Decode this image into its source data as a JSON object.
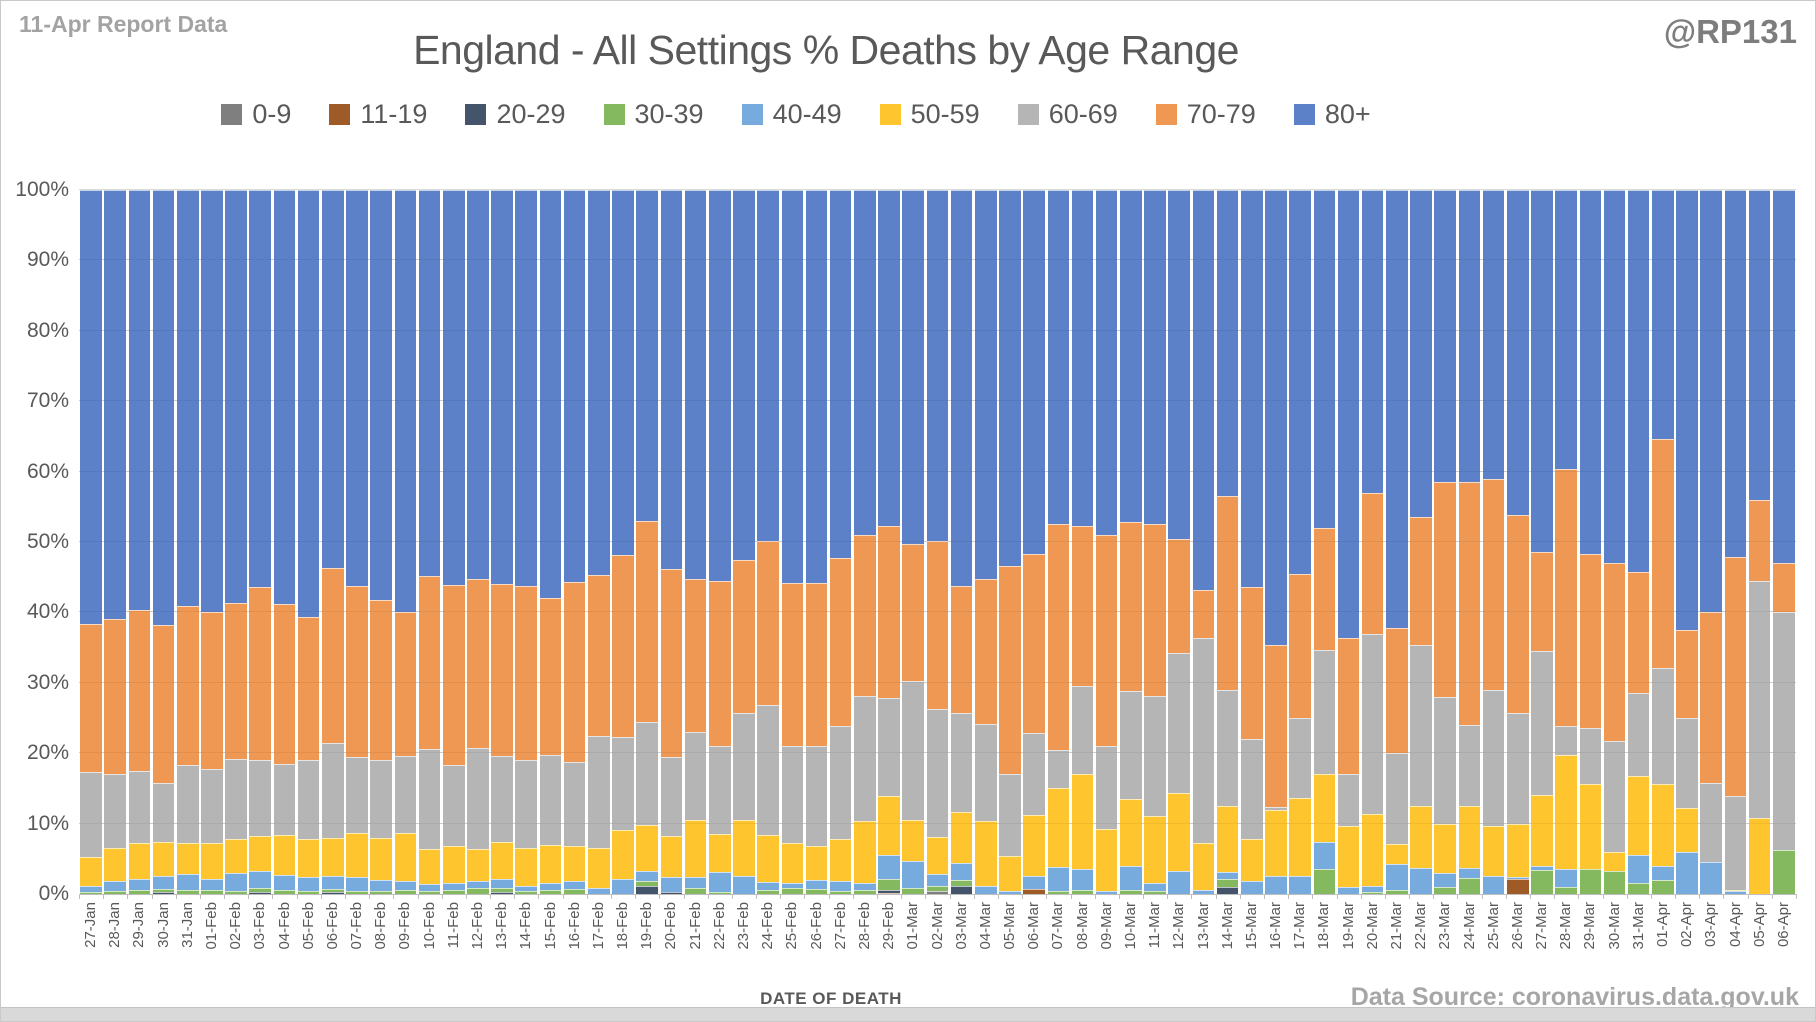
{
  "header": {
    "report_label": "11-Apr Report Data",
    "title": "England - All Settings % Deaths by Age Range",
    "handle": "@RP131"
  },
  "footer": {
    "xaxis_title": "DATE OF DEATH",
    "source": "Data Source: coronavirus.data.gov.uk"
  },
  "chart_data": {
    "type": "bar",
    "subtype": "stacked-100-percent",
    "title": "England - All Settings % Deaths by Age Range",
    "xlabel": "DATE OF DEATH",
    "ylabel": "",
    "ylim": [
      0,
      100
    ],
    "grid": true,
    "legend_position": "top",
    "y_ticks": [
      "0%",
      "10%",
      "20%",
      "30%",
      "40%",
      "50%",
      "60%",
      "70%",
      "80%",
      "90%",
      "100%"
    ],
    "categories": [
      "27-Jan",
      "28-Jan",
      "29-Jan",
      "30-Jan",
      "31-Jan",
      "01-Feb",
      "02-Feb",
      "03-Feb",
      "04-Feb",
      "05-Feb",
      "06-Feb",
      "07-Feb",
      "08-Feb",
      "09-Feb",
      "10-Feb",
      "11-Feb",
      "12-Feb",
      "13-Feb",
      "14-Feb",
      "15-Feb",
      "16-Feb",
      "17-Feb",
      "18-Feb",
      "19-Feb",
      "20-Feb",
      "21-Feb",
      "22-Feb",
      "23-Feb",
      "24-Feb",
      "25-Feb",
      "26-Feb",
      "27-Feb",
      "28-Feb",
      "29-Feb",
      "01-Mar",
      "02-Mar",
      "03-Mar",
      "04-Mar",
      "05-Mar",
      "06-Mar",
      "07-Mar",
      "08-Mar",
      "09-Mar",
      "10-Mar",
      "11-Mar",
      "12-Mar",
      "13-Mar",
      "14-Mar",
      "15-Mar",
      "16-Mar",
      "17-Mar",
      "18-Mar",
      "19-Mar",
      "20-Mar",
      "21-Mar",
      "22-Mar",
      "23-Mar",
      "24-Mar",
      "25-Mar",
      "26-Mar",
      "27-Mar",
      "28-Mar",
      "29-Mar",
      "30-Mar",
      "31-Mar",
      "01-Apr",
      "02-Apr",
      "03-Apr",
      "04-Apr",
      "05-Apr",
      "06-Apr"
    ],
    "series": [
      {
        "name": "0-9",
        "color": "#7f7f7f",
        "values": [
          0,
          0,
          0,
          0,
          0,
          0,
          0,
          0,
          0,
          0,
          0,
          0,
          0,
          0,
          0,
          0,
          0,
          0,
          0,
          0,
          0,
          0,
          0,
          0,
          0,
          0,
          0,
          0,
          0,
          0,
          0,
          0,
          0,
          0,
          0,
          0.4,
          0,
          0,
          0,
          0,
          0,
          0,
          0,
          0,
          0,
          0,
          0,
          0,
          0,
          0,
          0,
          0,
          0,
          0,
          0,
          0,
          0,
          0,
          0,
          0,
          0,
          0,
          0,
          0,
          0,
          0,
          0,
          0,
          0,
          0,
          0
        ]
      },
      {
        "name": "11-19",
        "color": "#9e5b28",
        "values": [
          0,
          0,
          0,
          0,
          0,
          0,
          0,
          0,
          0,
          0,
          0,
          0,
          0,
          0,
          0,
          0,
          0,
          0,
          0,
          0,
          0,
          0,
          0,
          0,
          0,
          0,
          0,
          0,
          0,
          0,
          0,
          0,
          0,
          0.2,
          0,
          0,
          0,
          0,
          0,
          0.7,
          0,
          0,
          0,
          0,
          0,
          0,
          0,
          0,
          0,
          0,
          0,
          0,
          0,
          0,
          0,
          0,
          0,
          0,
          0,
          2.2,
          0,
          0,
          0,
          0,
          0,
          0,
          0,
          0,
          0,
          0,
          0
        ]
      },
      {
        "name": "20-29",
        "color": "#44546a",
        "values": [
          0,
          0,
          0,
          0.3,
          0,
          0,
          0,
          0.3,
          0,
          0,
          0.3,
          0,
          0,
          0,
          0,
          0,
          0,
          0.3,
          0,
          0,
          0,
          0,
          0,
          1.2,
          0.3,
          0,
          0,
          0,
          0,
          0,
          0,
          0,
          0,
          0.4,
          0,
          0,
          1.1,
          0,
          0,
          0,
          0,
          0,
          0,
          0,
          0,
          0,
          0,
          1.0,
          0,
          0,
          0,
          0,
          0,
          0,
          0,
          0,
          0,
          0,
          0,
          0,
          0,
          0,
          0,
          0,
          0,
          0,
          0,
          0,
          0,
          0,
          0
        ]
      },
      {
        "name": "30-39",
        "color": "#84b95f",
        "values": [
          0.3,
          0.4,
          0.6,
          0.4,
          0.5,
          0.5,
          0.4,
          0.5,
          0.5,
          0.4,
          0.4,
          0.4,
          0.4,
          0.5,
          0.4,
          0.6,
          0.8,
          0.5,
          0.4,
          0.6,
          0.7,
          0,
          0,
          0.7,
          0,
          0.9,
          0.3,
          0,
          0.6,
          0.9,
          0.7,
          0.4,
          0.5,
          1.6,
          0.9,
          0.8,
          0.9,
          0,
          0,
          0,
          0.4,
          0.6,
          0,
          0.6,
          0.4,
          0,
          0,
          1.1,
          0,
          0,
          0,
          3.5,
          0,
          0.3,
          0.6,
          0,
          1.0,
          2.3,
          0,
          0,
          3.4,
          1.0,
          3.5,
          3.3,
          1.5,
          2.0,
          0,
          0,
          0,
          0,
          6.3
        ]
      },
      {
        "name": "40-49",
        "color": "#77aadd",
        "values": [
          0.9,
          1.5,
          1.6,
          1.9,
          2.4,
          1.7,
          2.6,
          2.4,
          2.2,
          2.0,
          1.9,
          2.0,
          1.6,
          1.3,
          1.0,
          0.9,
          1.1,
          1.4,
          0.7,
          1.0,
          1.1,
          0.9,
          2.1,
          1.4,
          2.1,
          1.5,
          2.8,
          2.6,
          1.1,
          0.6,
          1.3,
          1.5,
          1.1,
          3.4,
          3.8,
          1.6,
          2.4,
          1.2,
          0.4,
          1.9,
          3.5,
          3.0,
          0.4,
          3.4,
          1.2,
          3.3,
          0.6,
          1.1,
          1.8,
          2.6,
          2.6,
          3.9,
          1.0,
          0.8,
          3.6,
          3.7,
          2.0,
          1.4,
          2.6,
          0.2,
          0.6,
          2.5,
          0,
          0,
          4.0,
          2.0,
          5.9,
          4.5,
          0.4,
          0,
          0
        ]
      },
      {
        "name": "50-59",
        "color": "#fec52e",
        "values": [
          4.1,
          4.6,
          5.0,
          4.8,
          4.4,
          5.0,
          4.8,
          5.0,
          5.7,
          5.4,
          5.4,
          6.2,
          6.0,
          6.8,
          5.0,
          5.3,
          4.5,
          5.2,
          5.5,
          5.3,
          5.0,
          5.6,
          7.0,
          6.5,
          5.8,
          8.1,
          5.4,
          7.9,
          6.7,
          5.7,
          4.8,
          5.9,
          8.8,
          8.3,
          5.8,
          5.3,
          7.2,
          9.2,
          5.0,
          8.6,
          11.2,
          13.5,
          8.9,
          9.5,
          9.5,
          11.1,
          6.6,
          9.3,
          6.0,
          9.3,
          11.1,
          9.6,
          8.7,
          10.3,
          2.9,
          8.8,
          6.9,
          8.8,
          7.1,
          7.6,
          10.0,
          16.3,
          12.1,
          2.7,
          11.2,
          11.6,
          6.3,
          0,
          0.2,
          10.8,
          0
        ]
      },
      {
        "name": "60-69",
        "color": "#b5b5b5",
        "values": [
          12.0,
          10.6,
          10.3,
          8.4,
          11.0,
          10.5,
          11.4,
          10.9,
          10.1,
          11.2,
          13.5,
          10.9,
          11.0,
          11.0,
          14.2,
          11.6,
          14.3,
          12.2,
          12.5,
          12.9,
          11.9,
          15.9,
          13.2,
          14.6,
          11.3,
          12.5,
          12.5,
          15.2,
          18.5,
          13.8,
          14.2,
          16.0,
          17.7,
          13.9,
          19.7,
          18.2,
          14.1,
          13.8,
          11.7,
          11.7,
          5.4,
          12.4,
          11.7,
          15.4,
          17.1,
          19.9,
          29.2,
          16.5,
          14.2,
          0.4,
          11.3,
          17.6,
          7.4,
          25.5,
          12.9,
          22.9,
          18.1,
          11.5,
          19.3,
          15.7,
          20.5,
          4.0,
          8.0,
          15.7,
          11.9,
          16.5,
          12.8,
          11.3,
          13.3,
          33.7,
          33.8
        ]
      },
      {
        "name": "70-79",
        "color": "#ee9853",
        "values": [
          21.0,
          22.0,
          22.8,
          22.4,
          22.6,
          22.3,
          22.1,
          24.5,
          22.7,
          20.4,
          24.8,
          24.2,
          22.7,
          20.5,
          24.6,
          25.5,
          24.0,
          24.4,
          24.6,
          22.2,
          25.6,
          22.9,
          25.8,
          28.6,
          26.6,
          21.8,
          23.5,
          21.8,
          23.2,
          23.2,
          23.2,
          23.9,
          22.9,
          24.5,
          19.5,
          23.8,
          18.1,
          20.5,
          29.5,
          25.4,
          32.0,
          22.8,
          30.0,
          23.9,
          24.3,
          16.2,
          6.8,
          27.5,
          21.6,
          23.1,
          20.4,
          17.4,
          19.3,
          20.1,
          17.8,
          18.1,
          30.5,
          34.5,
          30.0,
          28.2,
          14.1,
          36.6,
          24.7,
          25.3,
          17.2,
          32.5,
          12.5,
          24.3,
          34.0,
          11.5,
          6.9
        ]
      },
      {
        "name": "80+",
        "color": "#5c81c9",
        "values": [
          61.7,
          60.9,
          59.7,
          61.8,
          59.1,
          60.0,
          58.7,
          56.4,
          58.8,
          60.6,
          53.7,
          56.3,
          58.3,
          59.9,
          54.8,
          56.1,
          55.3,
          56.0,
          56.3,
          58.0,
          55.7,
          54.7,
          51.9,
          47.0,
          53.9,
          55.2,
          55.5,
          52.5,
          49.9,
          55.8,
          55.8,
          52.3,
          49.0,
          47.7,
          50.3,
          49.9,
          56.2,
          55.3,
          53.4,
          51.7,
          47.5,
          47.7,
          49.0,
          47.2,
          47.5,
          49.5,
          56.8,
          43.5,
          56.4,
          64.6,
          54.6,
          48.0,
          63.6,
          43.0,
          62.2,
          46.5,
          41.5,
          41.5,
          41.0,
          46.1,
          51.4,
          39.6,
          51.7,
          53.0,
          54.2,
          35.4,
          62.5,
          59.9,
          52.1,
          44.0,
          53.0
        ]
      }
    ]
  }
}
